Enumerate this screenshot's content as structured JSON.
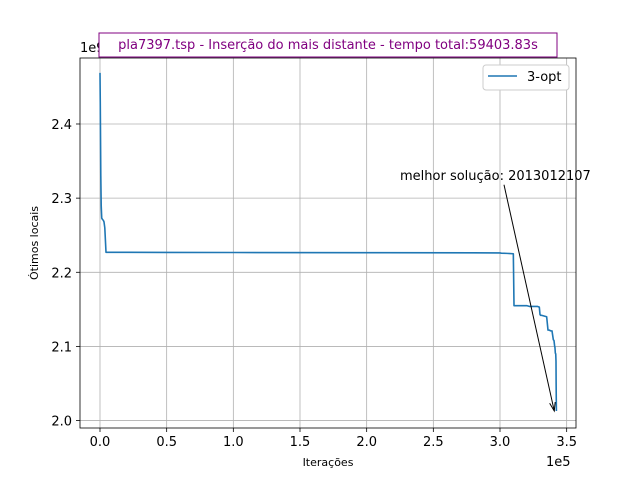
{
  "chart_data": {
    "type": "line",
    "title": "pla7397.tsp - Inserção do mais distante - tempo total:59403.83s",
    "xlabel": "Iterações",
    "ylabel": "Ótimos locais",
    "x_offset_label": "1e5",
    "y_offset_label": "1e9",
    "xlim": [
      -15000,
      357000
    ],
    "ylim": [
      1990000000.0,
      2489000000.0
    ],
    "xticks": [
      0,
      50000,
      100000,
      150000,
      200000,
      250000,
      300000,
      350000
    ],
    "xtick_labels": [
      "0.0",
      "0.5",
      "1.0",
      "1.5",
      "2.0",
      "2.5",
      "3.0",
      "3.5"
    ],
    "yticks": [
      2000000000.0,
      2100000000.0,
      2200000000.0,
      2300000000.0,
      2400000000.0
    ],
    "ytick_labels": [
      "2.0",
      "2.1",
      "2.2",
      "2.3",
      "2.4"
    ],
    "grid": true,
    "legend_position": "upper right",
    "series": [
      {
        "name": "3-opt",
        "color": "#1f77b4",
        "x": [
          0,
          200,
          600,
          900,
          1300,
          2000,
          2500,
          3000,
          3600,
          4500,
          10000,
          50000,
          100000,
          200000,
          280000,
          300000,
          301000,
          305000,
          310000,
          310500,
          320000,
          322000,
          323000,
          323500,
          328000,
          329500,
          330000,
          330500,
          331000,
          333000,
          335000,
          336000,
          337000,
          338000,
          339000,
          340000,
          340500,
          341000,
          341200,
          341500,
          341800,
          342000,
          342100,
          342200,
          342300
        ],
        "y": [
          2469000000.0,
          2430000000.0,
          2330000000.0,
          2290000000.0,
          2273000000.0,
          2271000000.0,
          2270000000.0,
          2268000000.0,
          2260000000.0,
          2227000000.0,
          2226900000.0,
          2226800000.0,
          2226700000.0,
          2226500000.0,
          2226200000.0,
          2226100000.0,
          2225800000.0,
          2225500000.0,
          2225000000.0,
          2155000000.0,
          2155000000.0,
          2154000000.0,
          2154000000.0,
          2154000000.0,
          2154000000.0,
          2153000000.0,
          2143000000.0,
          2142000000.0,
          2142000000.0,
          2141000000.0,
          2140000000.0,
          2122000000.0,
          2122000000.0,
          2121000000.0,
          2121000000.0,
          2109000000.0,
          2108000000.0,
          2100000000.0,
          2099000000.0,
          2091000000.0,
          2090000000.0,
          2080000000.0,
          2050000000.0,
          2030000000.0,
          2013000000.0
        ]
      }
    ],
    "annotation": {
      "text": "melhor solução: 2013012107",
      "text_anchor_data": [
        280000,
        2330000000.0
      ],
      "arrow_from_data": [
        303000,
        2318000000.0
      ],
      "arrow_to_data": [
        340700,
        2013000000.0
      ]
    },
    "colors": {
      "title": "#800080",
      "title_box": "#800080",
      "series": "#1f77b4",
      "grid": "#b0b0b0"
    }
  }
}
